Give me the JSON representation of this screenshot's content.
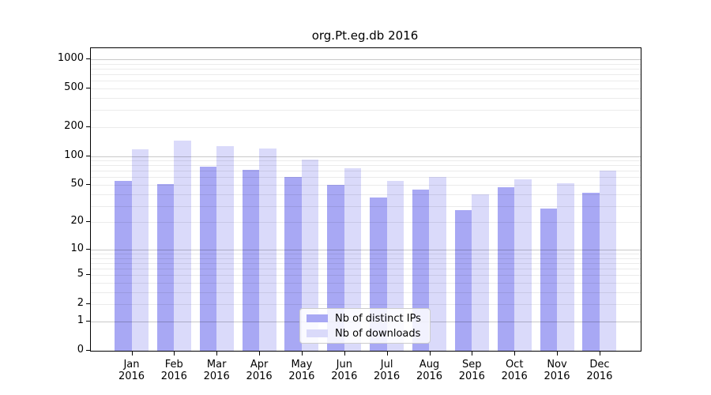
{
  "title": "org.Pt.eg.db 2016",
  "chart_data": {
    "type": "bar",
    "title": "org.Pt.eg.db 2016",
    "categories": [
      "Jan",
      "Feb",
      "Mar",
      "Apr",
      "May",
      "Jun",
      "Jul",
      "Aug",
      "Sep",
      "Oct",
      "Nov",
      "Dec"
    ],
    "x_axis": {
      "year_line": "2016"
    },
    "series": [
      {
        "name": "Nb of distinct IPs",
        "color": "#a8a8f4",
        "values": [
          55,
          51,
          78,
          72,
          61,
          50,
          37,
          45,
          27,
          47,
          28,
          41
        ]
      },
      {
        "name": "Nb of downloads",
        "color": "#dadafa",
        "values": [
          117,
          145,
          127,
          120,
          92,
          74,
          55,
          60,
          40,
          57,
          52,
          71
        ]
      }
    ],
    "y_axis": {
      "scale": "log1p",
      "ticks": [
        0,
        1,
        2,
        5,
        10,
        20,
        50,
        100,
        200,
        500,
        1000
      ],
      "ylim": [
        0,
        1000
      ]
    },
    "grid": {
      "on": true,
      "major_at": [
        1,
        10,
        100,
        1000
      ],
      "minor_mantissas": [
        2,
        3,
        4,
        5,
        6,
        7,
        8,
        9
      ]
    },
    "legend": {
      "position": "bottom-center"
    }
  }
}
